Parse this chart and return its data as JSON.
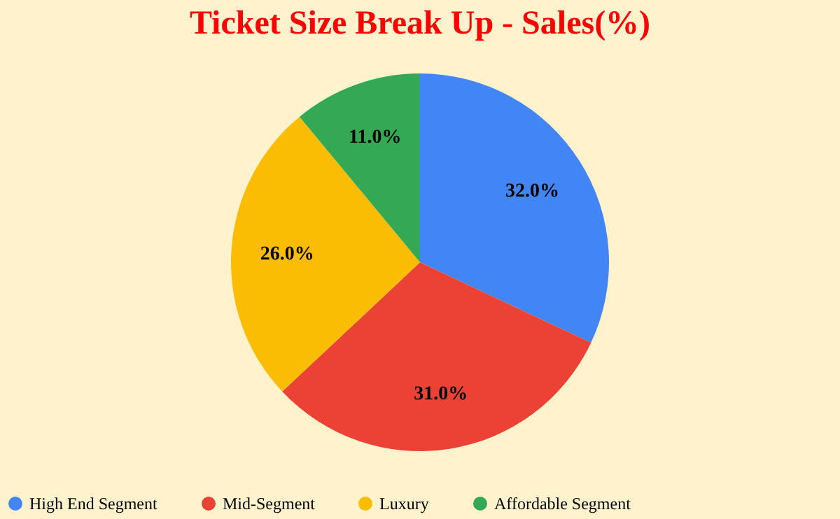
{
  "chart_data": {
    "type": "pie",
    "title": "Ticket Size Break Up - Sales(%)",
    "categories": [
      "High End Segment",
      "Mid-Segment",
      "Luxury",
      "Affordable Segment"
    ],
    "values": [
      32,
      31,
      26,
      11
    ],
    "colors": [
      "#4285f4",
      "#ea4335",
      "#fbbc04",
      "#34a853"
    ],
    "value_labels": [
      "32.0%",
      "31.0%",
      "26.0%",
      "11.0%"
    ],
    "legend": "bottom"
  }
}
